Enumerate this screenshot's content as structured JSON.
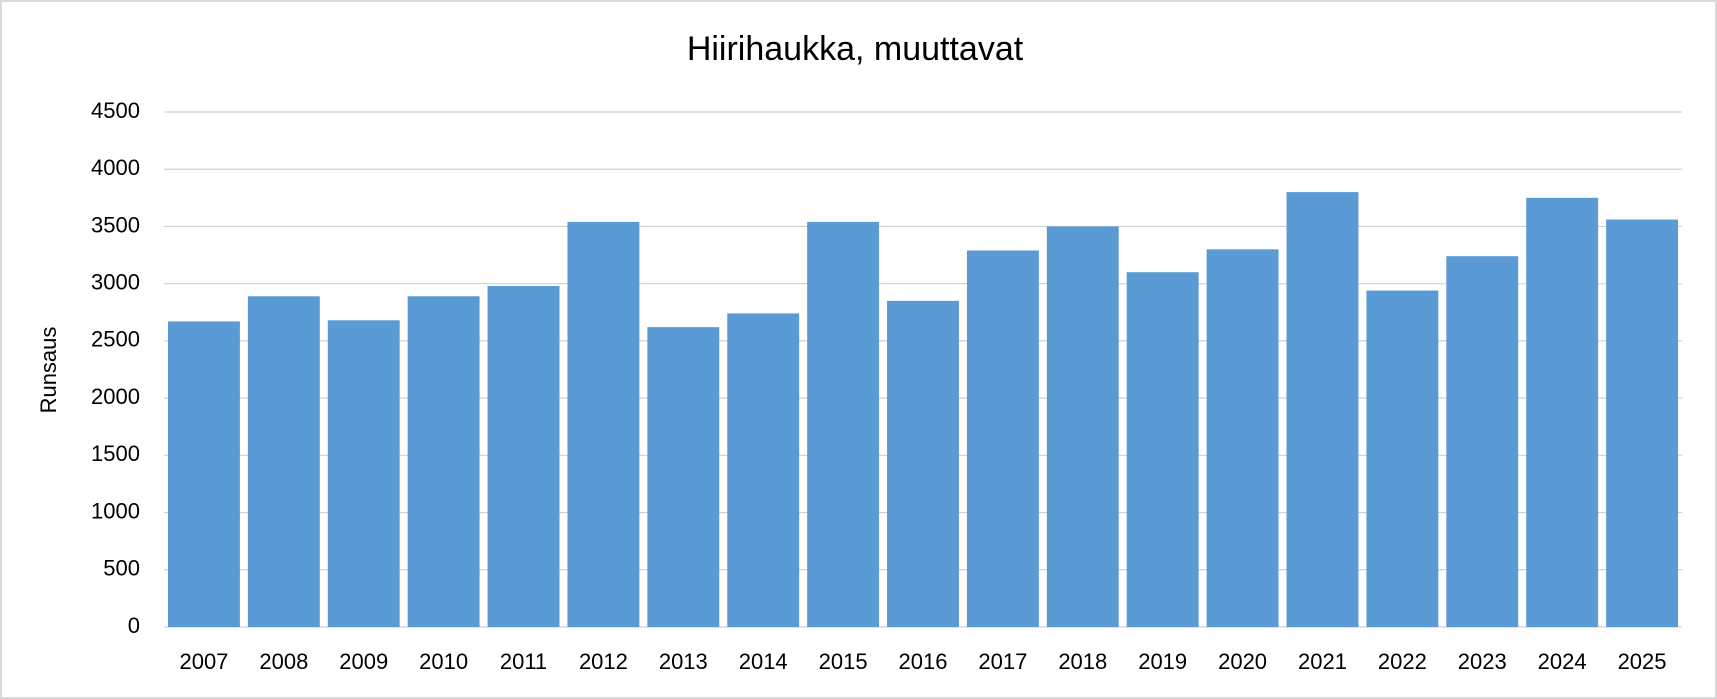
{
  "chart_data": {
    "type": "bar",
    "title": "Hiirihaukka, muuttavat",
    "y_label": "Runsaus",
    "categories": [
      "2007",
      "2008",
      "2009",
      "2010",
      "2011",
      "2012",
      "2013",
      "2014",
      "2015",
      "2016",
      "2017",
      "2018",
      "2019",
      "2020",
      "2021",
      "2022",
      "2023",
      "2024",
      "2025"
    ],
    "values": [
      2670,
      2890,
      2680,
      2890,
      2980,
      3540,
      2620,
      2740,
      3540,
      2850,
      3290,
      3500,
      3100,
      3300,
      3800,
      2940,
      3240,
      3750,
      3560
    ],
    "color": "#5b9bd5",
    "ylim": [
      0,
      4500
    ],
    "yticks": [
      0,
      500,
      1000,
      1500,
      2000,
      2500,
      3000,
      3500,
      4000,
      4500
    ],
    "grid": true
  }
}
